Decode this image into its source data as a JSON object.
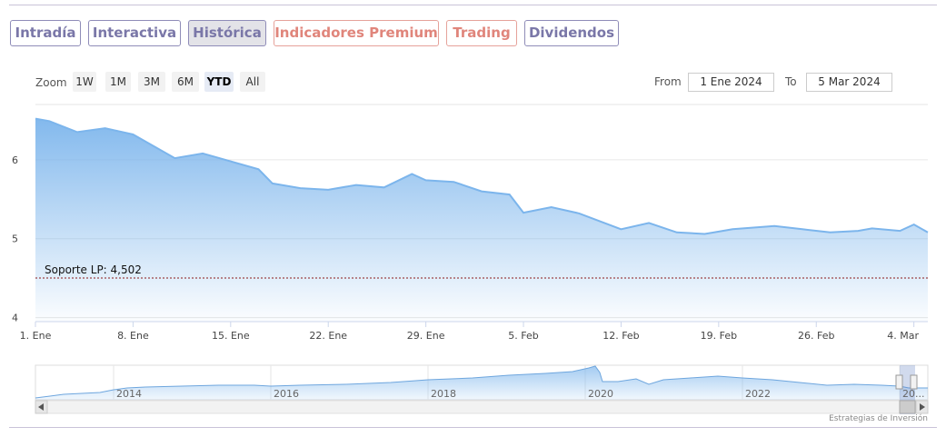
{
  "tabs": [
    {
      "label": "Intradía",
      "color": "#7a77a8"
    },
    {
      "label": "Interactiva",
      "color": "#7a77a8"
    },
    {
      "label": "Histórica",
      "color": "#7a77a8",
      "active": true
    },
    {
      "label": "Indicadores Premium",
      "color": "#e0857b"
    },
    {
      "label": "Trading",
      "color": "#e0857b"
    },
    {
      "label": "Dividendos",
      "color": "#7a77a8"
    }
  ],
  "range_selector": {
    "zoom_label": "Zoom",
    "buttons": [
      "1W",
      "1M",
      "3M",
      "6M",
      "YTD",
      "All"
    ],
    "selected": "YTD",
    "from_label": "From",
    "from_value": "1 Ene 2024",
    "to_label": "To",
    "to_value": "5 Mar 2024"
  },
  "chart_data": {
    "type": "area",
    "title": "",
    "xlabel": "",
    "ylabel": "",
    "x_tick_labels": [
      "1. Ene",
      "8. Ene",
      "15. Ene",
      "22. Ene",
      "29. Ene",
      "5. Feb",
      "12. Feb",
      "19. Feb",
      "26. Feb",
      "4. Mar"
    ],
    "y_tick_labels": [
      "4",
      "5",
      "6"
    ],
    "ylim": [
      3.95,
      6.7
    ],
    "x": [
      "2024-01-01",
      "2024-01-02",
      "2024-01-04",
      "2024-01-06",
      "2024-01-08",
      "2024-01-11",
      "2024-01-13",
      "2024-01-15",
      "2024-01-17",
      "2024-01-18",
      "2024-01-20",
      "2024-01-22",
      "2024-01-24",
      "2024-01-26",
      "2024-01-28",
      "2024-01-29",
      "2024-01-31",
      "2024-02-02",
      "2024-02-04",
      "2024-02-05",
      "2024-02-07",
      "2024-02-09",
      "2024-02-12",
      "2024-02-14",
      "2024-02-16",
      "2024-02-18",
      "2024-02-20",
      "2024-02-23",
      "2024-02-25",
      "2024-02-27",
      "2024-02-29",
      "2024-03-01",
      "2024-03-03",
      "2024-03-04",
      "2024-03-05"
    ],
    "values": [
      6.52,
      6.49,
      6.35,
      6.4,
      6.32,
      6.02,
      6.08,
      5.98,
      5.88,
      5.7,
      5.64,
      5.62,
      5.68,
      5.65,
      5.82,
      5.74,
      5.72,
      5.6,
      5.56,
      5.33,
      5.4,
      5.32,
      5.12,
      5.2,
      5.08,
      5.06,
      5.12,
      5.16,
      5.12,
      5.08,
      5.1,
      5.13,
      5.1,
      5.18,
      5.08
    ],
    "support_line": {
      "label": "Soporte LP: 4,502",
      "value": 4.502,
      "color": "#8b1a1a"
    },
    "series_color": "#7cb5ec",
    "grid": true,
    "navigator": {
      "x_tick_labels": [
        "2014",
        "2016",
        "2018",
        "2020",
        "2022",
        "20..."
      ]
    }
  },
  "credit": "Estrategias de Inversión"
}
